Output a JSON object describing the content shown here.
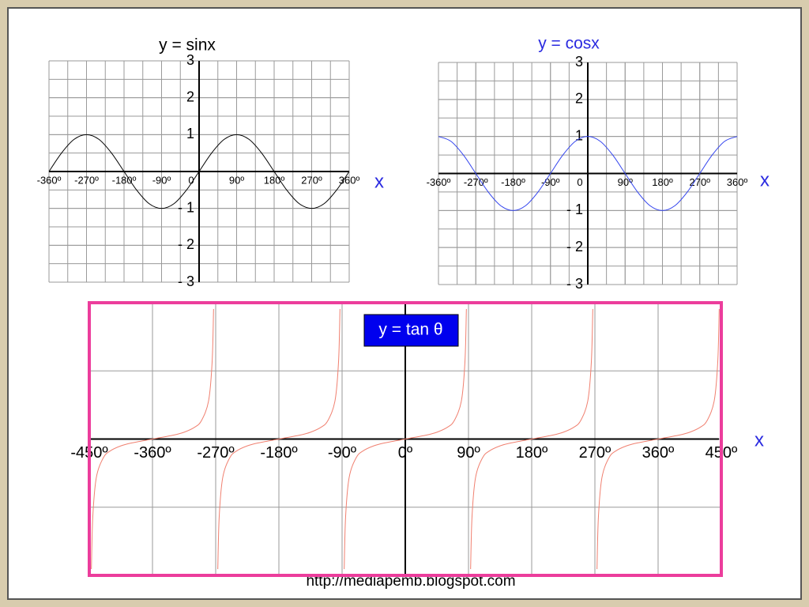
{
  "chart_data": [
    {
      "type": "line",
      "title": "y = sinx",
      "x_label": "x",
      "color": "#000000",
      "x": [
        -360,
        -330,
        -300,
        -270,
        -240,
        -210,
        -180,
        -150,
        -120,
        -90,
        -60,
        -30,
        0,
        30,
        60,
        90,
        120,
        150,
        180,
        210,
        240,
        270,
        300,
        330,
        360
      ],
      "values": [
        0,
        0.5,
        0.87,
        1,
        0.87,
        0.5,
        0,
        -0.5,
        -0.87,
        -1,
        -0.87,
        -0.5,
        0,
        0.5,
        0.87,
        1,
        0.87,
        0.5,
        0,
        -0.5,
        -0.87,
        -1,
        -0.87,
        -0.5,
        0
      ],
      "xlim": [
        -360,
        360
      ],
      "ylim": [
        -3,
        3
      ],
      "xticks": [
        {
          "value": -360,
          "label": "-360º"
        },
        {
          "value": -270,
          "label": "-270º"
        },
        {
          "value": -180,
          "label": "-180º"
        },
        {
          "value": -90,
          "label": "-90º"
        },
        0,
        {
          "value": 90,
          "label": "90º"
        },
        {
          "value": 180,
          "label": "180º"
        },
        {
          "value": 270,
          "label": "270º"
        },
        {
          "value": 360,
          "label": "360º"
        }
      ],
      "yticks": [
        {
          "value": -3,
          "label": "- 3"
        },
        {
          "value": -2,
          "label": "- 2"
        },
        {
          "value": -1,
          "label": "- 1"
        },
        1,
        2,
        3
      ],
      "grid": true
    },
    {
      "type": "line",
      "title": "y = cosx",
      "x_label": "x",
      "color": "#3344ee",
      "x": [
        -360,
        -330,
        -300,
        -270,
        -240,
        -210,
        -180,
        -150,
        -120,
        -90,
        -60,
        -30,
        0,
        30,
        60,
        90,
        120,
        150,
        180,
        210,
        240,
        270,
        300,
        330,
        360
      ],
      "values": [
        1,
        0.87,
        0.5,
        0,
        -0.5,
        -0.87,
        -1,
        -0.87,
        -0.5,
        0,
        0.5,
        0.87,
        1,
        0.87,
        0.5,
        0,
        -0.5,
        -0.87,
        -1,
        -0.87,
        -0.5,
        0,
        0.5,
        0.87,
        1
      ],
      "xlim": [
        -360,
        360
      ],
      "ylim": [
        -3,
        3
      ],
      "xticks": [
        {
          "value": -360,
          "label": "-360º"
        },
        {
          "value": -270,
          "label": "-270º"
        },
        {
          "value": -180,
          "label": "-180º"
        },
        {
          "value": -90,
          "label": "-90º"
        },
        0,
        {
          "value": 90,
          "label": "90º"
        },
        {
          "value": 180,
          "label": "180º"
        },
        {
          "value": 270,
          "label": "270º"
        },
        {
          "value": 360,
          "label": "360º"
        }
      ],
      "yticks": [
        {
          "value": -3,
          "label": "- 3"
        },
        {
          "value": -2,
          "label": "- 2"
        },
        {
          "value": -1,
          "label": "- 1"
        },
        1,
        2,
        3
      ],
      "grid": true
    },
    {
      "type": "line",
      "title": "y = tan θ",
      "x_label": "x",
      "color": "#f08070",
      "x": [
        -447,
        -445,
        -440,
        -430,
        -420,
        -405,
        -390,
        -360,
        -330,
        -315,
        -300,
        -290,
        -280,
        -275,
        -273,
        -270,
        -267,
        -265,
        -260,
        -250,
        -240,
        -225,
        -210,
        -180,
        -150,
        -135,
        -120,
        -110,
        -100,
        -95,
        -93,
        -90,
        -87,
        -85,
        -80,
        -70,
        -60,
        -45,
        -30,
        0,
        30,
        45,
        60,
        70,
        80,
        85,
        87,
        90,
        93,
        95,
        100,
        110,
        120,
        135,
        150,
        180,
        210,
        225,
        240,
        250,
        260,
        265,
        267,
        270,
        273,
        275,
        280,
        290,
        300,
        315,
        330,
        360,
        390,
        405,
        420,
        430,
        440,
        445,
        447
      ],
      "values": [
        -19.08,
        -11.43,
        -5.67,
        -2.75,
        -1.73,
        -1,
        -0.58,
        0,
        0.58,
        1,
        1.73,
        2.75,
        5.67,
        11.43,
        19.08,
        null,
        -19.08,
        -11.43,
        -5.67,
        -2.75,
        -1.73,
        -1,
        -0.58,
        0,
        0.58,
        1,
        1.73,
        2.75,
        5.67,
        11.43,
        19.08,
        null,
        -19.08,
        -11.43,
        -5.67,
        -2.75,
        -1.73,
        -1,
        -0.58,
        0,
        0.58,
        1,
        1.73,
        2.75,
        5.67,
        11.43,
        19.08,
        null,
        -19.08,
        -11.43,
        -5.67,
        -2.75,
        -1.73,
        -1,
        -0.58,
        0,
        0.58,
        1,
        1.73,
        2.75,
        5.67,
        11.43,
        19.08,
        null,
        -19.08,
        -11.43,
        -5.67,
        -2.75,
        -1.73,
        -1,
        -0.58,
        0,
        0.58,
        1,
        1.73,
        2.75,
        5.67,
        11.43,
        19.08
      ],
      "xlim": [
        -450,
        450
      ],
      "ylim": [
        -20,
        20
      ],
      "xticks": [
        {
          "value": -450,
          "label": "-450º"
        },
        {
          "value": -360,
          "label": "-360º"
        },
        {
          "value": -270,
          "label": "-270º"
        },
        {
          "value": -180,
          "label": "-180º"
        },
        {
          "value": -90,
          "label": "-90º"
        },
        {
          "value": 0,
          "label": "0º"
        },
        {
          "value": 90,
          "label": "90º"
        },
        {
          "value": 180,
          "label": "180º"
        },
        {
          "value": 270,
          "label": "270º"
        },
        {
          "value": 360,
          "label": "360º"
        },
        {
          "value": 450,
          "label": "450º"
        }
      ],
      "grid": true
    }
  ],
  "footer": "http://mediapemb.blogspot.com"
}
